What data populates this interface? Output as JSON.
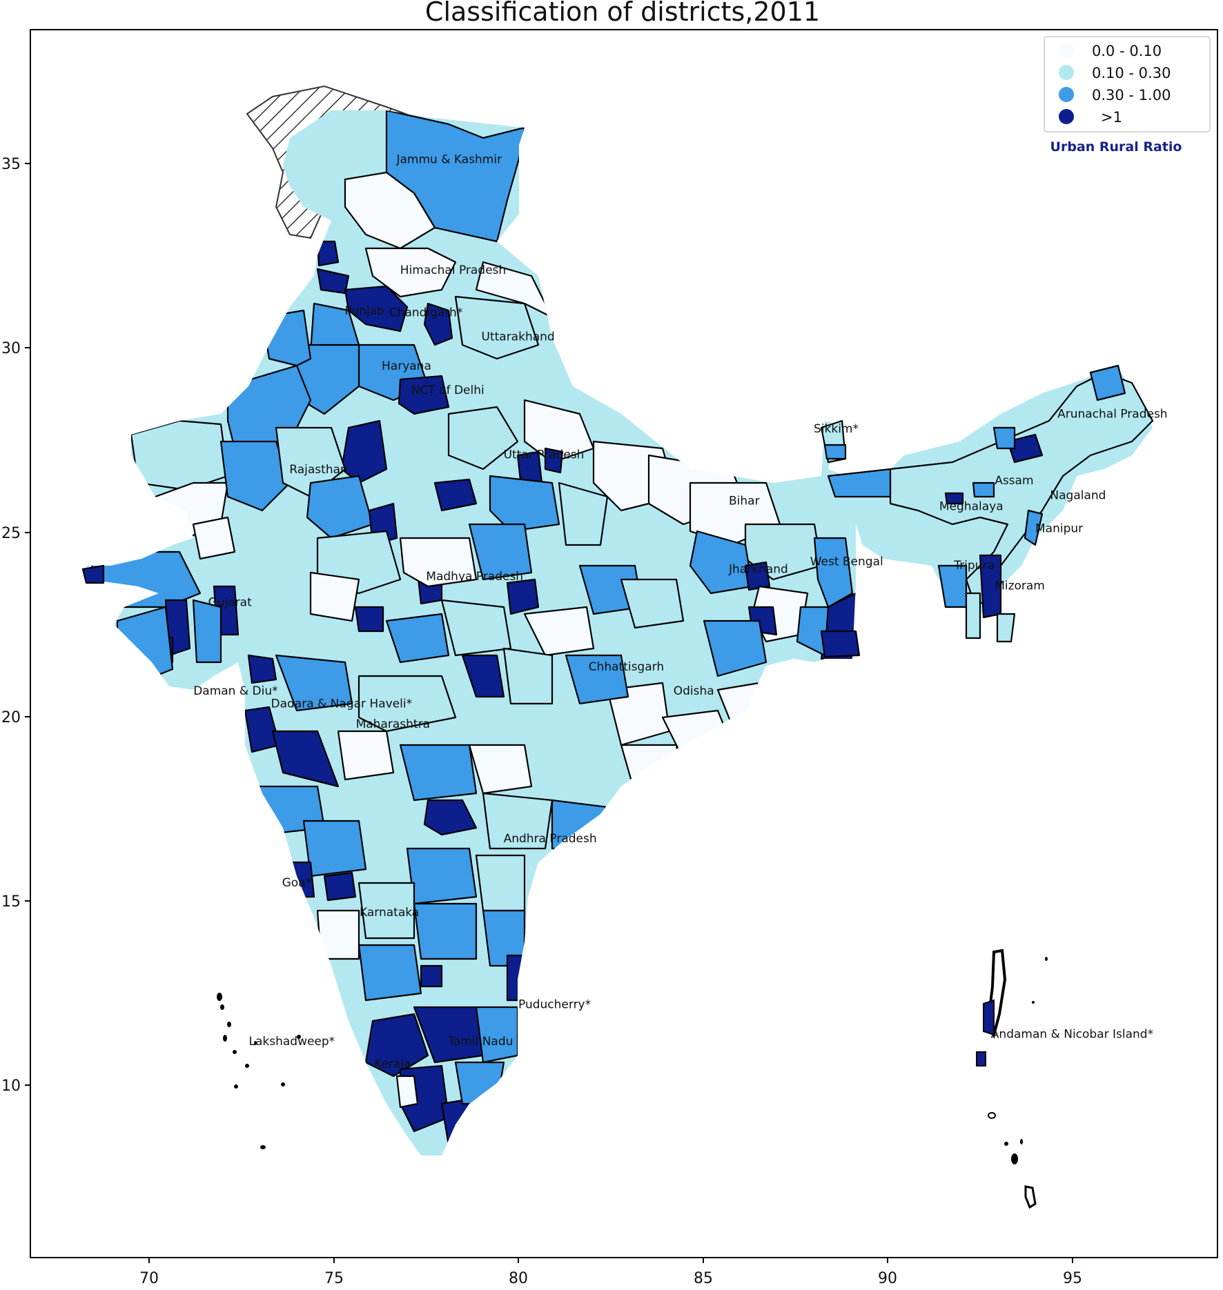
{
  "title": "Classification of districts,2011",
  "x_axis": {
    "ticks": [
      "70",
      "75",
      "80",
      "85",
      "90",
      "95"
    ],
    "range": [
      66.8,
      99
    ]
  },
  "y_axis": {
    "ticks": [
      "10",
      "15",
      "20",
      "25",
      "30",
      "35"
    ],
    "range": [
      5.3,
      38.7
    ]
  },
  "legend": {
    "entries": [
      {
        "label": "0.0  - 0.10",
        "color": "#f7fbff"
      },
      {
        "label": "0.10 - 0.30",
        "color": "#b3e8f0"
      },
      {
        "label": "0.30 - 1.00",
        "color": "#3d9be8"
      },
      {
        "label": ">1",
        "color": "#0d1f8c"
      }
    ],
    "note": "Urban Rural Ratio"
  },
  "state_labels": [
    {
      "text": "Jammu & Kashmir",
      "lon": 76.7,
      "lat": 35.0
    },
    {
      "text": "Himachal Pradesh",
      "lon": 76.8,
      "lat": 32.0
    },
    {
      "text": "Punjab",
      "lon": 75.3,
      "lat": 30.9
    },
    {
      "text": "Chandigarh*",
      "lon": 76.5,
      "lat": 30.85
    },
    {
      "text": "Uttarakhand",
      "lon": 79.0,
      "lat": 30.2
    },
    {
      "text": "Haryana",
      "lon": 76.3,
      "lat": 29.4
    },
    {
      "text": "NCT of Delhi",
      "lon": 77.1,
      "lat": 28.75
    },
    {
      "text": "Rajasthan",
      "lon": 73.8,
      "lat": 26.6
    },
    {
      "text": "Uttar Pradesh",
      "lon": 79.6,
      "lat": 27.0
    },
    {
      "text": "Sikkim*",
      "lon": 88.0,
      "lat": 27.7
    },
    {
      "text": "Arunachal Pradesh",
      "lon": 94.6,
      "lat": 28.1
    },
    {
      "text": "Assam",
      "lon": 92.9,
      "lat": 26.3
    },
    {
      "text": "Nagaland",
      "lon": 94.4,
      "lat": 25.9
    },
    {
      "text": "Meghalaya",
      "lon": 91.4,
      "lat": 25.6
    },
    {
      "text": "Bihar",
      "lon": 85.7,
      "lat": 25.75
    },
    {
      "text": "Manipur",
      "lon": 94.0,
      "lat": 25.0
    },
    {
      "text": "West Bengal",
      "lon": 87.9,
      "lat": 24.1
    },
    {
      "text": "Jharkhand",
      "lon": 85.7,
      "lat": 23.9
    },
    {
      "text": "Tripura",
      "lon": 91.8,
      "lat": 24.0
    },
    {
      "text": "Mizoram",
      "lon": 92.9,
      "lat": 23.45
    },
    {
      "text": "Madhya Pradesh",
      "lon": 77.5,
      "lat": 23.7
    },
    {
      "text": "Gujarat",
      "lon": 71.6,
      "lat": 23.0
    },
    {
      "text": "Chhattisgarh",
      "lon": 81.9,
      "lat": 21.25
    },
    {
      "text": "Odisha",
      "lon": 84.2,
      "lat": 20.6
    },
    {
      "text": "Daman & Diu*",
      "lon": 71.2,
      "lat": 20.6
    },
    {
      "text": "Dadara & Nagar Haveli*",
      "lon": 73.3,
      "lat": 20.25
    },
    {
      "text": "Maharashtra",
      "lon": 75.6,
      "lat": 19.7
    },
    {
      "text": "Andhra Pradesh",
      "lon": 79.6,
      "lat": 16.6
    },
    {
      "text": "Goa*",
      "lon": 73.6,
      "lat": 15.4
    },
    {
      "text": "Karnataka",
      "lon": 75.7,
      "lat": 14.6
    },
    {
      "text": "Puducherry*",
      "lon": 80.0,
      "lat": 12.1
    },
    {
      "text": "Tamil Nadu",
      "lon": 78.1,
      "lat": 11.1
    },
    {
      "text": "Kerala",
      "lon": 76.1,
      "lat": 10.5
    },
    {
      "text": "Lakshadweep*",
      "lon": 72.7,
      "lat": 11.1
    },
    {
      "text": "Andaman & Nicobar Island*",
      "lon": 92.8,
      "lat": 11.3
    }
  ]
}
